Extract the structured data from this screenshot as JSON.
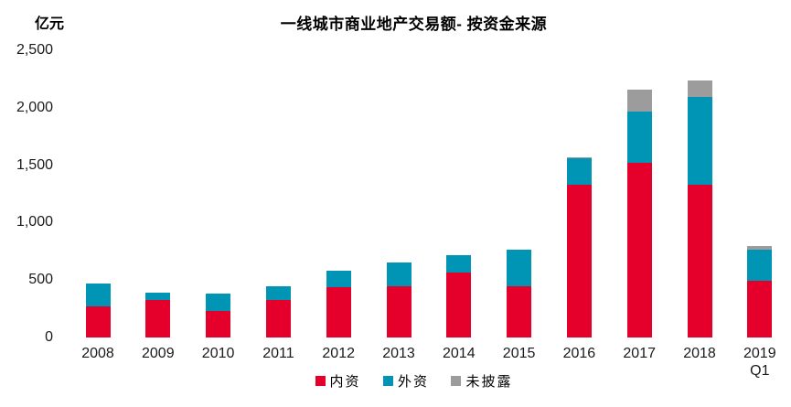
{
  "chart_data": {
    "type": "bar",
    "stacked": true,
    "title": "一线城市商业地产交易额- 按资金来源",
    "unit_label": "亿元",
    "xlabel": "",
    "ylabel": "亿元",
    "categories": [
      "2008",
      "2009",
      "2010",
      "2011",
      "2012",
      "2013",
      "2014",
      "2015",
      "2016",
      "2017",
      "2018",
      "2019\nQ1"
    ],
    "series": [
      {
        "name": "内资",
        "color": "#E4002B",
        "values": [
          270,
          330,
          230,
          325,
          440,
          445,
          565,
          445,
          1330,
          1520,
          1330,
          495
        ]
      },
      {
        "name": "外资",
        "color": "#0095B5",
        "values": [
          200,
          60,
          155,
          120,
          140,
          210,
          150,
          320,
          230,
          445,
          765,
          270
        ]
      },
      {
        "name": "未披露",
        "color": "#9C9C9C",
        "values": [
          0,
          0,
          0,
          0,
          0,
          0,
          0,
          0,
          10,
          190,
          145,
          35
        ]
      }
    ],
    "ylim": [
      0,
      2500
    ],
    "yticks": [
      0,
      500,
      1000,
      1500,
      2000,
      2500
    ],
    "ytick_labels": [
      "0",
      "500",
      "1,000",
      "1,500",
      "2,000",
      "2,500"
    ],
    "grid": false,
    "legend_position": "bottom"
  }
}
